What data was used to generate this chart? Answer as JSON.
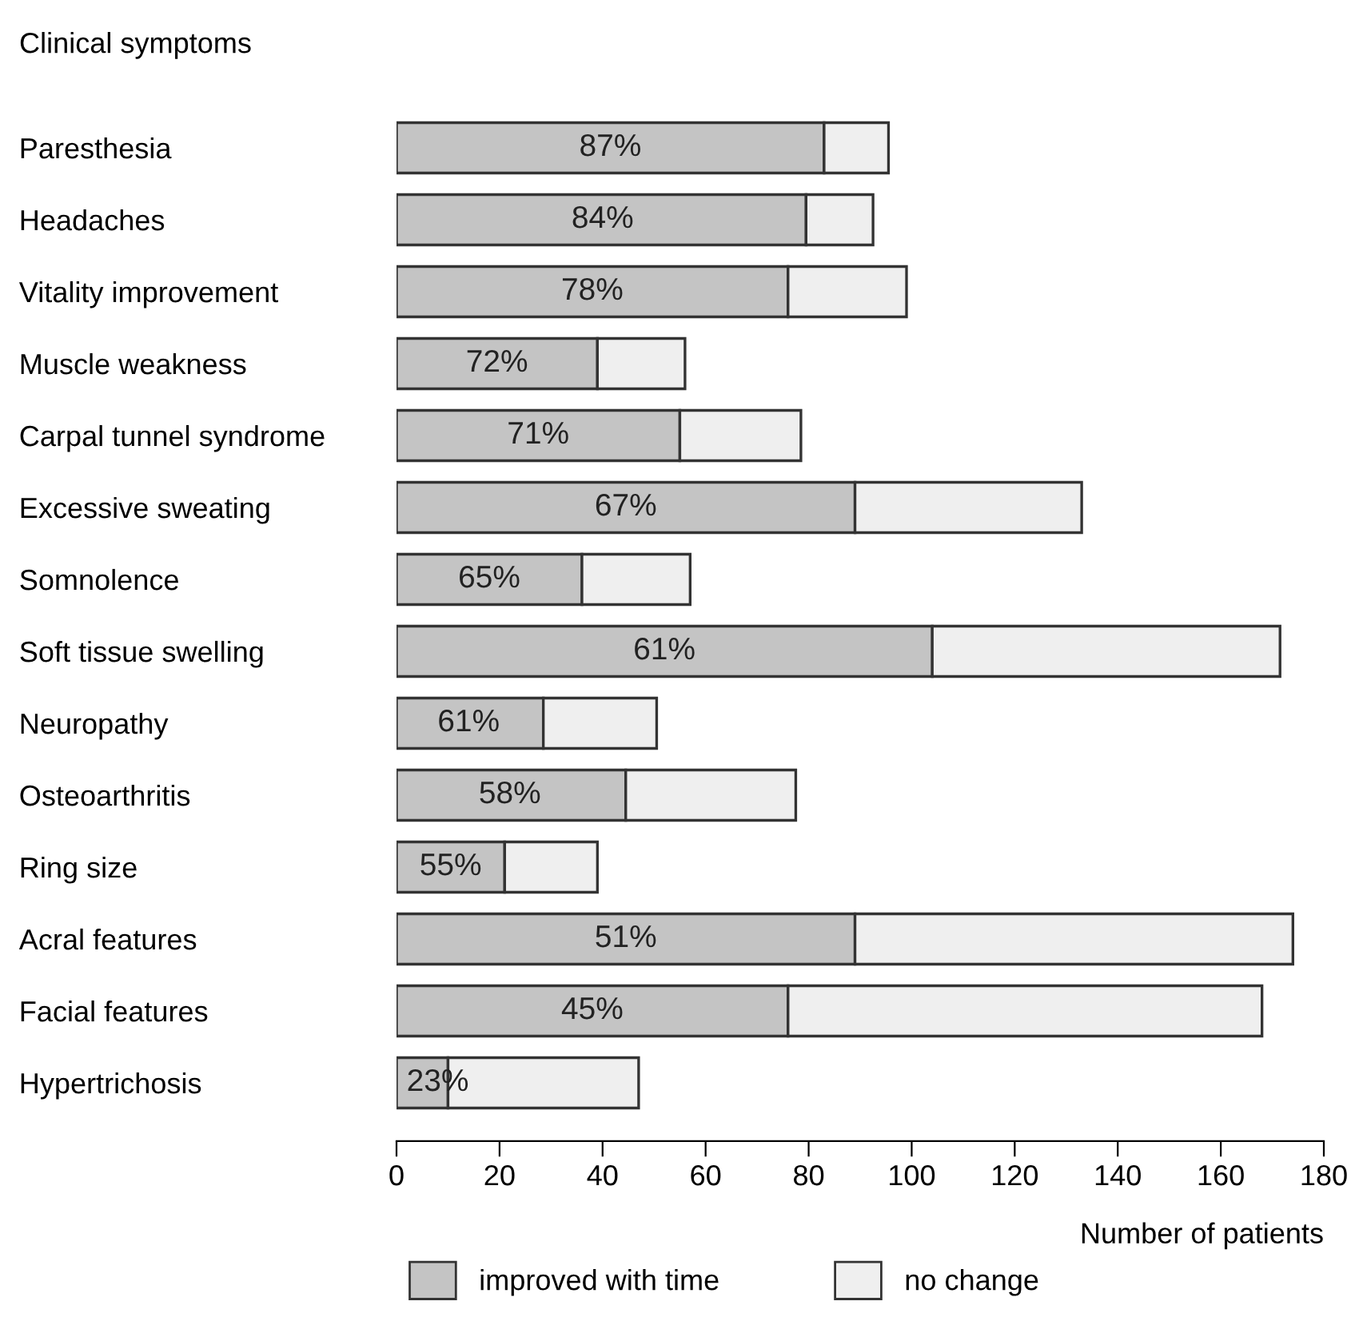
{
  "chart_data": {
    "type": "bar",
    "orientation": "horizontal",
    "stacked": true,
    "title": "Clinical symptoms",
    "xlabel": "Number of patients",
    "categories": [
      "Paresthesia",
      "Headaches",
      "Vitality improvement",
      "Muscle weakness",
      "Carpal tunnel syndrome",
      "Excessive sweating",
      "Somnolence",
      "Soft tissue swelling",
      "Neuropathy",
      "Osteoarthritis",
      "Ring size",
      "Acral features",
      "Facial features",
      "Hypertrichosis"
    ],
    "series": [
      {
        "name": "improved with time",
        "color": "#c4c4c4",
        "values": [
          83,
          79.5,
          76,
          39,
          55,
          89,
          36,
          104,
          28.5,
          44.5,
          21,
          89,
          76,
          10
        ]
      },
      {
        "name": "no change",
        "color": "#efefef",
        "values": [
          12.5,
          13,
          23,
          17,
          23.5,
          44,
          21,
          67.5,
          22,
          33,
          18,
          85,
          92,
          37
        ]
      }
    ],
    "annotations": [
      {
        "text": "87%",
        "x": 41.5,
        "y": "Paresthesia"
      },
      {
        "text": "84%",
        "x": 40,
        "y": "Headaches"
      },
      {
        "text": "78%",
        "x": 38,
        "y": "Vitality improvement"
      },
      {
        "text": "72%",
        "x": 19.5,
        "y": "Muscle weakness"
      },
      {
        "text": "71%",
        "x": 27.5,
        "y": "Carpal tunnel syndrome"
      },
      {
        "text": "67%",
        "x": 44.5,
        "y": "Excessive sweating"
      },
      {
        "text": "65%",
        "x": 18,
        "y": "Somnolence"
      },
      {
        "text": "61%",
        "x": 52,
        "y": "Soft tissue swelling"
      },
      {
        "text": "61%",
        "x": 14,
        "y": "Neuropathy"
      },
      {
        "text": "58%",
        "x": 22,
        "y": "Osteoarthritis"
      },
      {
        "text": "55%",
        "x": 10.5,
        "y": "Ring size"
      },
      {
        "text": "51%",
        "x": 44.5,
        "y": "Acral features"
      },
      {
        "text": "45%",
        "x": 38,
        "y": "Facial features"
      },
      {
        "text": "23%",
        "x": 8,
        "y": "Hypertrichosis"
      }
    ],
    "xlim": [
      0,
      180
    ],
    "xticks": [
      0,
      20,
      40,
      60,
      80,
      100,
      120,
      140,
      160,
      180
    ],
    "grid": false,
    "legend": "bottom"
  }
}
